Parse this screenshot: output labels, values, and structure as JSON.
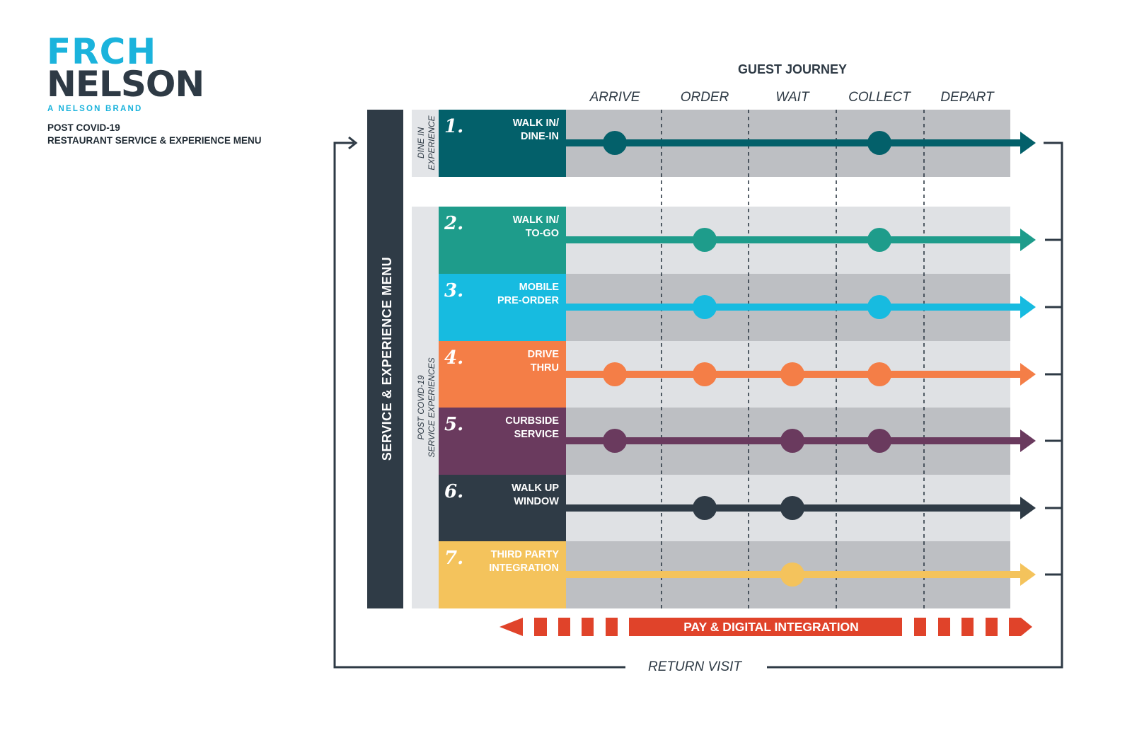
{
  "brand": {
    "line1": "FRCH",
    "line2": "NELSON",
    "tagline": "A NELSON BRAND",
    "colors": {
      "cyan": "#1bb3dc",
      "navy": "#2e3a45"
    }
  },
  "title": {
    "line1": "POST COVID-19",
    "line2": "RESTAURANT SERVICE & EXPERIENCE MENU"
  },
  "journey": {
    "heading": "GUEST JOURNEY",
    "stages": [
      "ARRIVE",
      "ORDER",
      "WAIT",
      "COLLECT",
      "DEPART"
    ]
  },
  "menu_label": "SERVICE & EXPERIENCE MENU",
  "groups": {
    "dine_in": {
      "line1": "DINE IN",
      "line2": "EXPERIENCE"
    },
    "post_covid": {
      "line1": "POST COVID-19",
      "line2": "SERVICE EXPERIENCES"
    }
  },
  "services": [
    {
      "number": "1.",
      "line1": "WALK IN/",
      "line2": "DINE-IN",
      "color": "#03606a",
      "stages": [
        "ARRIVE",
        "COLLECT"
      ]
    },
    {
      "number": "2.",
      "line1": "WALK IN/",
      "line2": "TO-GO",
      "color": "#1e9c8b",
      "stages": [
        "ORDER",
        "COLLECT"
      ]
    },
    {
      "number": "3.",
      "line1": "MOBILE",
      "line2": "PRE-ORDER",
      "color": "#17bbe0",
      "stages": [
        "ORDER",
        "COLLECT"
      ]
    },
    {
      "number": "4.",
      "line1": "DRIVE",
      "line2": "THRU",
      "color": "#f47e47",
      "stages": [
        "ARRIVE",
        "ORDER",
        "WAIT",
        "COLLECT"
      ]
    },
    {
      "number": "5.",
      "line1": "CURBSIDE",
      "line2": "SERVICE",
      "color": "#6a3a5e",
      "stages": [
        "ARRIVE",
        "WAIT",
        "COLLECT"
      ]
    },
    {
      "number": "6.",
      "line1": "WALK UP",
      "line2": "WINDOW",
      "color": "#2f3b46",
      "stages": [
        "ORDER",
        "WAIT"
      ]
    },
    {
      "number": "7.",
      "line1": "THIRD PARTY",
      "line2": "INTEGRATION",
      "color": "#f4c35c",
      "stages": [
        "WAIT"
      ]
    }
  ],
  "pay_label": "PAY & DIGITAL INTEGRATION",
  "pay_color": "#e0432a",
  "return_label": "RETURN VISIT"
}
